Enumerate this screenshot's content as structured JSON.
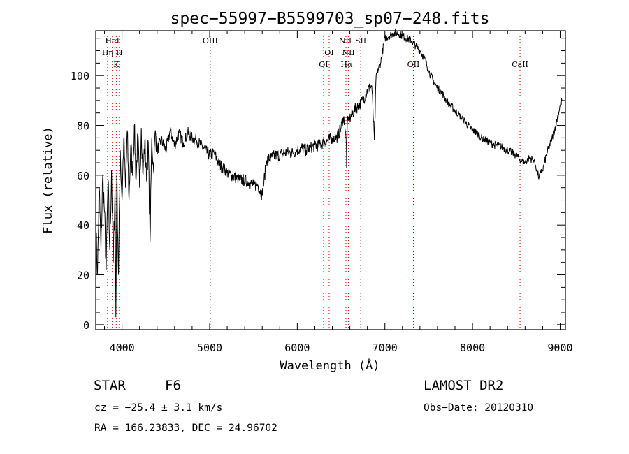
{
  "chart_data": {
    "type": "line",
    "title": "spec−55997−B5599703_sp07−248.fits",
    "xlabel": "Wavelength (Å)",
    "ylabel": "Flux (relative)",
    "xlim": [
      3700,
      9060
    ],
    "ylim": [
      -2,
      118
    ],
    "x_ticks": [
      4000,
      5000,
      6000,
      7000,
      8000,
      9000
    ],
    "y_ticks": [
      0,
      20,
      40,
      60,
      80,
      100
    ],
    "grid": false,
    "series": [
      {
        "x": [
          3700,
          3720,
          3740,
          3760,
          3780,
          3800,
          3820,
          3840,
          3860,
          3880,
          3900,
          3920,
          3930,
          3940,
          3960,
          3980,
          4000,
          4020,
          4040,
          4060,
          4080,
          4100,
          4120,
          4140,
          4160,
          4180,
          4200,
          4220,
          4240,
          4260,
          4280,
          4300,
          4320,
          4340,
          4360,
          4380,
          4400,
          4450,
          4500,
          4550,
          4600,
          4650,
          4700,
          4750,
          4800,
          4850,
          4900,
          4950,
          5000,
          5050,
          5100,
          5150,
          5200,
          5250,
          5300,
          5350,
          5400,
          5450,
          5500,
          5550,
          5600,
          5650,
          5700,
          5750,
          5800,
          5850,
          5900,
          5950,
          6000,
          6050,
          6100,
          6150,
          6200,
          6250,
          6300,
          6350,
          6400,
          6450,
          6500,
          6520,
          6540,
          6560,
          6563,
          6570,
          6580,
          6600,
          6650,
          6700,
          6750,
          6800,
          6850,
          6880,
          6900,
          6950,
          7000,
          7050,
          7100,
          7150,
          7200,
          7250,
          7300,
          7350,
          7400,
          7450,
          7500,
          7550,
          7600,
          7650,
          7700,
          7750,
          7800,
          7850,
          7900,
          7950,
          8000,
          8050,
          8100,
          8150,
          8200,
          8250,
          8300,
          8350,
          8400,
          8450,
          8500,
          8550,
          8600,
          8650,
          8700,
          8720,
          8740,
          8760,
          8780,
          8800,
          8850,
          8900,
          8950,
          9000,
          9020
        ],
        "y": [
          40,
          20,
          55,
          30,
          60,
          45,
          22,
          58,
          30,
          62,
          25,
          55,
          3,
          60,
          20,
          70,
          50,
          75,
          55,
          78,
          50,
          72,
          60,
          80,
          58,
          76,
          55,
          79,
          60,
          74,
          58,
          73,
          33,
          75,
          62,
          78,
          70,
          74,
          70,
          78,
          72,
          77,
          73,
          77,
          75,
          74,
          72,
          70,
          68,
          69,
          65,
          63,
          61,
          60,
          59,
          58,
          58,
          57,
          56,
          56,
          52,
          66,
          67,
          68,
          68,
          69,
          69,
          69,
          70,
          71,
          70,
          71,
          72,
          72,
          73,
          74,
          75,
          75,
          79,
          83,
          82,
          72,
          63,
          80,
          82,
          83,
          86,
          88,
          90,
          94,
          96,
          74,
          100,
          105,
          115,
          116,
          117,
          117,
          116,
          115,
          114,
          112,
          110,
          107,
          102,
          98,
          95,
          93,
          90,
          88,
          86,
          84,
          82,
          80,
          78,
          77,
          75,
          74,
          73,
          72,
          72,
          71,
          70,
          69,
          68,
          66,
          65,
          67,
          66,
          64,
          61,
          59,
          61,
          62,
          69,
          74,
          80,
          88,
          90
        ]
      }
    ],
    "annotations": [
      {
        "label": "HeI",
        "x": 3889,
        "row": 0
      },
      {
        "label": "Hη",
        "x": 3835,
        "row": 1
      },
      {
        "label": "H",
        "x": 3970,
        "row": 1
      },
      {
        "label": "K",
        "x": 3934,
        "row": 2
      },
      {
        "label": "OIII",
        "x": 5007,
        "row": 0
      },
      {
        "label": "OI",
        "x": 6300,
        "row": 2
      },
      {
        "label": "OI",
        "x": 6364,
        "row": 1
      },
      {
        "label": "NII",
        "x": 6548,
        "row": 0
      },
      {
        "label": "NII",
        "x": 6584,
        "row": 1
      },
      {
        "label": "Hα",
        "x": 6563,
        "row": 2
      },
      {
        "label": "SII",
        "x": 6724,
        "row": 0
      },
      {
        "label": "OII",
        "x": 7325,
        "row": 2
      },
      {
        "label": "CaII",
        "x": 8542,
        "row": 2
      }
    ],
    "line_color": "#000000",
    "marker_color": "#cc0000"
  },
  "info": {
    "object_class": "STAR",
    "subclass": "F6",
    "survey": "LAMOST DR2",
    "cz": "cz = −25.4 ± 3.1 km/s",
    "obs_date": "Obs−Date: 20120310",
    "radec": "RA = 166.23833, DEC =  24.96702"
  }
}
